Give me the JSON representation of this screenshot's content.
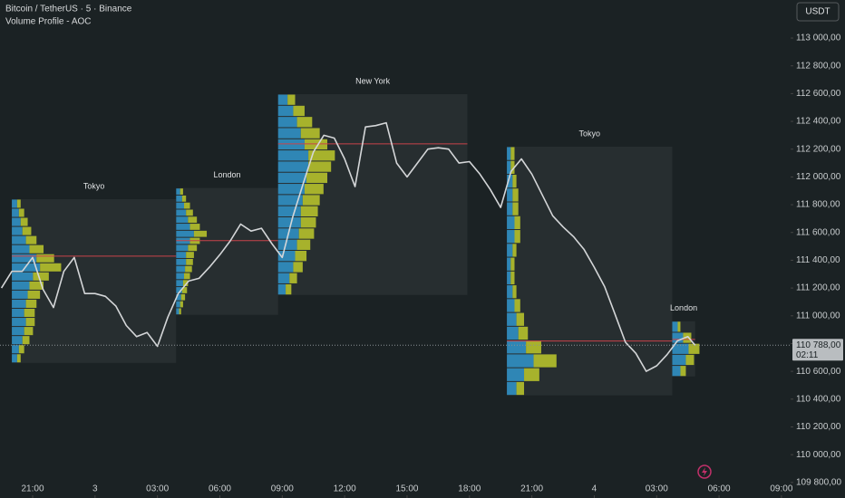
{
  "header": {
    "symbol": "Bitcoin / TetherUS · 5 · Binance",
    "indicator": "Volume Profile - AOC",
    "currency": "USDT"
  },
  "chart_data": {
    "type": "line",
    "color": "#d4d6d8",
    "x": [
      19.5,
      20,
      20.5,
      21,
      21.5,
      22,
      22.5,
      23,
      23.5,
      24,
      24.5,
      25,
      25.5,
      26,
      26.5,
      27,
      27.5,
      28,
      28.5,
      29,
      29.5,
      30,
      30.5,
      31,
      31.5,
      32,
      32.5,
      33,
      33.5,
      34,
      34.5,
      35,
      35.5,
      36,
      36.5,
      37,
      37.5,
      38,
      38.5,
      39,
      39.5,
      40,
      40.5,
      41,
      41.5,
      42,
      42.5,
      43,
      43.5,
      44,
      44.5,
      45,
      45.5,
      46,
      46.5,
      47,
      47.5,
      48,
      48.5,
      49,
      49.5,
      50,
      50.5,
      51,
      51.5,
      52,
      52.5,
      52.85
    ],
    "values": [
      111200,
      111320,
      111320,
      111420,
      111190,
      111060,
      111320,
      111420,
      111160,
      111160,
      111140,
      111070,
      110930,
      110850,
      110880,
      110780,
      110990,
      111160,
      111250,
      111270,
      111350,
      111440,
      111540,
      111660,
      111610,
      111630,
      111520,
      111420,
      111710,
      111950,
      112180,
      112300,
      112280,
      112130,
      111930,
      112360,
      112370,
      112390,
      112100,
      112000,
      112100,
      112200,
      112210,
      112200,
      112100,
      112110,
      112020,
      111910,
      111780,
      112040,
      112130,
      112020,
      111870,
      111720,
      111640,
      111570,
      111480,
      111350,
      111210,
      111010,
      110810,
      110730,
      110600,
      110640,
      110720,
      110820,
      110850,
      110788
    ],
    "xlim": [
      19.43,
      57.44
    ],
    "ylim": [
      109688,
      113274
    ],
    "xticks": [
      {
        "value": 21,
        "label": "21:00"
      },
      {
        "value": 24,
        "label": "3"
      },
      {
        "value": 27,
        "label": "03:00"
      },
      {
        "value": 30,
        "label": "06:00"
      },
      {
        "value": 33,
        "label": "09:00"
      },
      {
        "value": 36,
        "label": "12:00"
      },
      {
        "value": 39,
        "label": "15:00"
      },
      {
        "value": 42,
        "label": "18:00"
      },
      {
        "value": 45,
        "label": "21:00"
      },
      {
        "value": 48,
        "label": "4"
      },
      {
        "value": 51,
        "label": "03:00"
      },
      {
        "value": 54,
        "label": "06:00"
      },
      {
        "value": 57,
        "label": "09:00"
      }
    ],
    "yticks": [
      {
        "value": 109800,
        "label": "109 800,00"
      },
      {
        "value": 110000,
        "label": "110 000,00"
      },
      {
        "value": 110200,
        "label": "110 200,00"
      },
      {
        "value": 110400,
        "label": "110 400,00"
      },
      {
        "value": 110600,
        "label": "110 600,00"
      },
      {
        "value": 110800,
        "label": "110 800,00"
      },
      {
        "value": 111000,
        "label": "111 000,00"
      },
      {
        "value": 111200,
        "label": "111 200,00"
      },
      {
        "value": 111400,
        "label": "111 400,00"
      },
      {
        "value": 111600,
        "label": "111 600,00"
      },
      {
        "value": 111800,
        "label": "111 800,00"
      },
      {
        "value": 112000,
        "label": "112 000,00"
      },
      {
        "value": 112200,
        "label": "112 200,00"
      },
      {
        "value": 112400,
        "label": "112 400,00"
      },
      {
        "value": 112600,
        "label": "112 600,00"
      },
      {
        "value": 112800,
        "label": "112 800,00"
      },
      {
        "value": 113000,
        "label": "113 000,00"
      }
    ],
    "last_price": {
      "value": 110788,
      "label": "110 788,00",
      "countdown": "02:11"
    },
    "up_color": "#2f86b5",
    "down_color": "#a7b22c",
    "poc_color": "#c9434a",
    "sessions": [
      {
        "label": "Tokyo",
        "x": [
          20.0,
          27.9
        ],
        "high": 111840,
        "low": 110661,
        "poc": 111430,
        "volume_up": [
          3,
          4,
          5,
          6,
          8,
          10,
          14,
          16,
          12,
          10,
          9,
          8,
          7,
          8,
          7,
          6,
          4,
          3
        ],
        "volume_down": [
          2,
          3,
          4,
          5,
          6,
          8,
          10,
          12,
          9,
          8,
          7,
          6,
          6,
          5,
          5,
          4,
          3,
          2
        ]
      },
      {
        "label": "London",
        "x": [
          27.9,
          32.8
        ],
        "high": 111920,
        "low": 111007,
        "poc": 111541,
        "volume_up": [
          4,
          6,
          8,
          10,
          12,
          14,
          18,
          14,
          12,
          10,
          10,
          9,
          8,
          7,
          6,
          5,
          4,
          3
        ],
        "volume_down": [
          3,
          4,
          6,
          7,
          9,
          10,
          13,
          10,
          9,
          8,
          7,
          7,
          6,
          5,
          5,
          4,
          3,
          2
        ]
      },
      {
        "label": "New York",
        "x": [
          32.8,
          41.9
        ],
        "high": 112596,
        "low": 111150,
        "poc": 112238,
        "volume_up": [
          5,
          8,
          10,
          12,
          14,
          16,
          16,
          15,
          14,
          13,
          12,
          12,
          11,
          10,
          9,
          8,
          6,
          4
        ],
        "volume_down": [
          4,
          6,
          8,
          10,
          12,
          14,
          12,
          11,
          10,
          9,
          9,
          8,
          8,
          7,
          6,
          5,
          4,
          3
        ]
      },
      {
        "label": "Tokyo",
        "x": [
          43.8,
          51.75
        ],
        "high": 112218,
        "low": 110427,
        "poc": 110818,
        "volume_up": [
          2,
          2,
          3,
          3,
          3,
          4,
          4,
          3,
          2,
          2,
          3,
          4,
          5,
          6,
          10,
          14,
          9,
          5
        ],
        "volume_down": [
          2,
          2,
          2,
          3,
          3,
          3,
          3,
          2,
          2,
          2,
          2,
          3,
          4,
          5,
          8,
          12,
          8,
          4
        ]
      },
      {
        "label": "London",
        "x": [
          51.75,
          52.85
        ],
        "high": 110961,
        "low": 110563,
        "poc": 110830,
        "volume_up": [
          2,
          4,
          6,
          5,
          3
        ],
        "volume_down": [
          1,
          3,
          4,
          3,
          2
        ]
      }
    ]
  }
}
